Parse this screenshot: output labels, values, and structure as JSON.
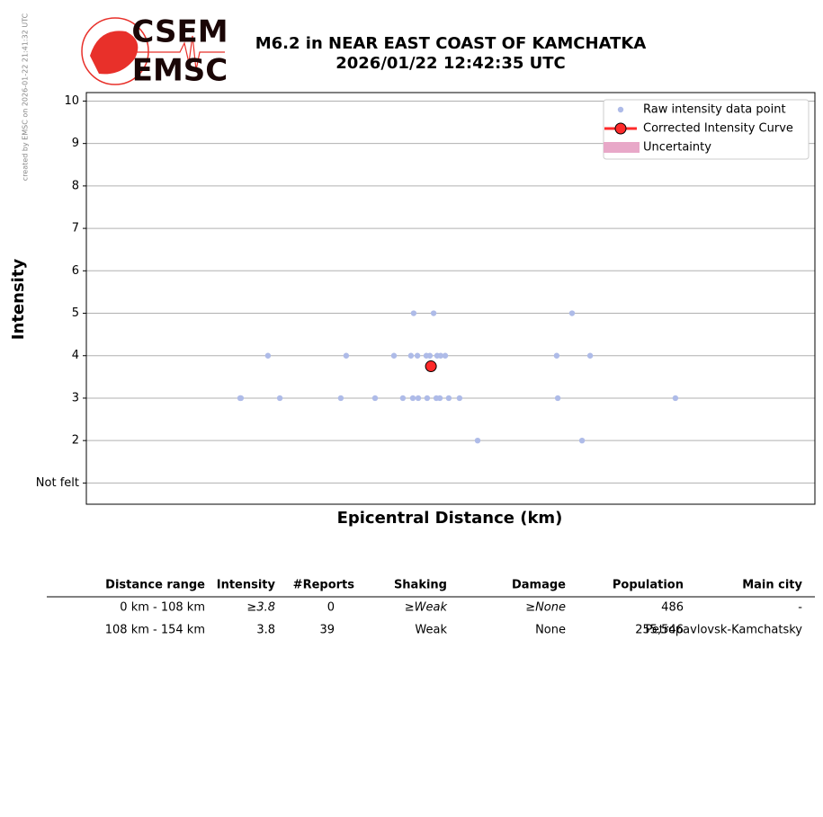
{
  "chart_data": {
    "type": "scatter",
    "title": "M6.2 in NEAR EAST COAST OF KAMCHATKA",
    "subtitle": "2026/01/22 12:42:35 UTC",
    "credit": "created by EMSC on 2026-01-22 21:41:32 UTC",
    "logo": [
      "CSEM",
      "EMSC"
    ],
    "x_label": "Epicentral Distance (km)",
    "y_label": "Intensity",
    "xlim": [
      0,
      270
    ],
    "ylim": [
      0.5,
      10.2
    ],
    "yticks": [
      {
        "value": 1,
        "label": "Not felt"
      },
      2,
      3,
      4,
      5,
      6,
      7,
      8,
      9,
      10
    ],
    "grid": true,
    "legend": "upper right",
    "series": [
      {
        "name": "Raw intensity data point",
        "color": "#aebbe8",
        "x": [
          57,
          57.3,
          71.7,
          94.3,
          107,
          117.3,
          121,
          123,
          126.3,
          129.7,
          131,
          134.3,
          138.3,
          174.7,
          218.3,
          67.3,
          96.3,
          114,
          120.3,
          122.7,
          126,
          127.3,
          130,
          131.3,
          133,
          174.3,
          186.7,
          121.3,
          128.7,
          180,
          145,
          183.7
        ],
        "values": [
          3,
          3,
          3,
          3,
          3,
          3,
          3,
          3,
          3,
          3,
          3,
          3,
          3,
          3,
          3,
          4,
          4,
          4,
          4,
          4,
          4,
          4,
          4,
          4,
          4,
          4,
          4,
          5,
          5,
          5,
          2,
          2
        ]
      },
      {
        "name": "Corrected Intensity Curve",
        "color": "#ff2a2a",
        "x": [
          127.7
        ],
        "values": [
          3.75
        ]
      },
      {
        "name": "Uncertainty",
        "color": "#e8a8c8"
      }
    ]
  },
  "table": {
    "headers": [
      "Distance range",
      "Intensity",
      "#Reports",
      "Shaking",
      "Damage",
      "Population",
      "Main city"
    ],
    "rows": [
      [
        "0 km -  108 km",
        "≥3.8",
        "0",
        "≥Weak",
        "≥None",
        "486",
        "-"
      ],
      [
        "108 km -  154 km",
        "3.8",
        "39",
        "Weak",
        "None",
        "255,546",
        "Petropavlovsk-Kamchatsky"
      ]
    ]
  }
}
